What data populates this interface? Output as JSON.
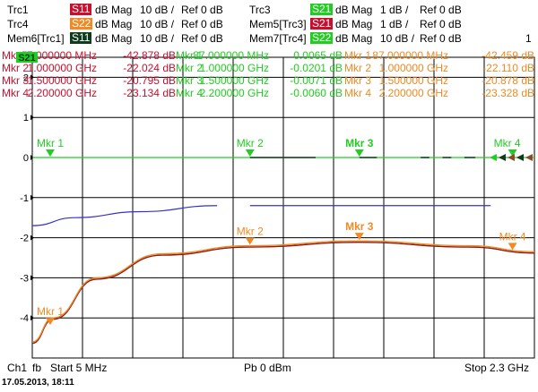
{
  "header": {
    "rows": [
      {
        "trace": "Trc1",
        "param": "S11",
        "param_color": "#c8102e",
        "format": "dB Mag",
        "scale": "10 dB /",
        "ref": "Ref 0 dB"
      },
      {
        "trace": "Trc4",
        "param": "S22",
        "param_color": "#f08a24",
        "format": "dB Mag",
        "scale": "10 dB /",
        "ref": "Ref 0 dB"
      },
      {
        "trace": "Mem6[Trc1]",
        "param": "S11",
        "param_color": "#0f3a1e",
        "format": "dB Mag",
        "scale": "10 dB /",
        "ref": "Ref 0 dB"
      }
    ],
    "rows_right": [
      {
        "trace": "Trc3",
        "param": "S21",
        "param_color": "#22cc22",
        "format": "dB Mag",
        "scale": "1 dB /",
        "ref": "Ref 0 dB"
      },
      {
        "trace": "Mem5[Trc3]",
        "param": "S21",
        "param_color": "#c8102e",
        "format": "dB Mag",
        "scale": "1 dB /",
        "ref": "Ref 0 dB"
      },
      {
        "trace": "Mem7[Trc4]",
        "param": "S22",
        "param_color": "#22cc22",
        "format": "dB Mag",
        "scale": "10 dB /",
        "ref": "Ref 0 dB"
      }
    ],
    "channel_number": "1"
  },
  "marker_tables": {
    "s11": [
      {
        "name": "Mkr 1",
        "freq": "87.000000 MHz",
        "value": "-42.878 dB"
      },
      {
        "name": "Mkr 2",
        "freq": "1.000000 GHz",
        "value": "-22.024 dB"
      },
      {
        "name": "Mkr 3",
        "freq": "1.500000 GHz",
        "value": "-20.795 dB"
      },
      {
        "name": "Mkr 4",
        "freq": "2.200000 GHz",
        "value": "-23.134 dB"
      }
    ],
    "s21": [
      {
        "name": "Mkr 1",
        "freq": "87.000000 MHz",
        "value": "0.0065 dB"
      },
      {
        "name": "Mkr 2",
        "freq": "1.000000 GHz",
        "value": "-0.0201 dB"
      },
      {
        "name": "Mkr 3",
        "freq": "1.500000 GHz",
        "value": "-0.0071 dB"
      },
      {
        "name": "Mkr 4",
        "freq": "2.200000 GHz",
        "value": "-0.0060 dB"
      }
    ],
    "s22": [
      {
        "name": "Mkr 1",
        "freq": "87.000000 MHz",
        "value": "-42.459 dB"
      },
      {
        "name": "Mkr 2",
        "freq": "1.000000 GHz",
        "value": "-22.110 dB"
      },
      {
        "name": "Mkr 3",
        "freq": "1.500000 GHz",
        "value": "-20.878 dB"
      },
      {
        "name": "Mkr 4",
        "freq": "2.200000 GHz",
        "value": "-23.328 dB"
      }
    ]
  },
  "active_marker_badge": "S21",
  "footer": {
    "channel": "Ch1",
    "mode": "fb",
    "start": "Start  5 MHz",
    "power": "Pb  0 dBm",
    "stop": "Stop  2.3 GHz"
  },
  "timestamp": "17.05.2013, 18:11",
  "colors": {
    "s11": "#c8102e",
    "s21": "#22cc22",
    "s22": "#f08a24",
    "mem": "#3333cc",
    "grid": "#000000"
  },
  "chart_data": {
    "type": "line",
    "title": "",
    "xlabel": "",
    "ylabel": "",
    "xlim": [
      0.005,
      2.3
    ],
    "ylim": [
      -5,
      2.5
    ],
    "x_unit": "GHz",
    "yticks": [
      "2",
      "1",
      "0",
      "-1",
      "-2",
      "-3",
      "-4"
    ],
    "ytick_values": [
      2,
      1,
      0,
      -1,
      -2,
      -3,
      -4
    ],
    "grid": true,
    "series": [
      {
        "id": "s21",
        "color": "#22cc22",
        "x": [
          0.005,
          2.3
        ],
        "y": [
          0.0,
          0.0
        ]
      },
      {
        "id": "s11_s22",
        "color": "#f08a24",
        "x": [
          0.005,
          0.1,
          0.3,
          0.6,
          1.0,
          1.5,
          2.0,
          2.3
        ],
        "y": [
          -4.6,
          -4.0,
          -3.0,
          -2.4,
          -2.2,
          -2.08,
          -2.2,
          -2.35
        ]
      },
      {
        "id": "mem_blue",
        "color": "#3333cc",
        "x": [
          0.005,
          0.2,
          0.5,
          0.85,
          1.0,
          2.3
        ],
        "y": [
          -1.7,
          -1.5,
          -1.35,
          -1.2,
          -1.2,
          -1.2
        ]
      }
    ],
    "markers": [
      {
        "label": "Mkr 1",
        "series": "s21",
        "x": 0.087,
        "y": 0.0
      },
      {
        "label": "Mkr 2",
        "series": "s21",
        "x": 1.0,
        "y": 0.0
      },
      {
        "label": "Mkr 3",
        "series": "s21",
        "x": 1.5,
        "y": 0.0
      },
      {
        "label": "Mkr 4",
        "series": "s21",
        "x": 2.2,
        "y": 0.0
      },
      {
        "label": "Mkr 1",
        "series": "s22",
        "x": 0.087,
        "y": -4.2
      },
      {
        "label": "Mkr 2",
        "series": "s22",
        "x": 1.0,
        "y": -2.2
      },
      {
        "label": "Mkr 3",
        "series": "s22",
        "x": 1.5,
        "y": -2.08
      },
      {
        "label": "Mkr 4",
        "series": "s22",
        "x": 2.2,
        "y": -2.33
      }
    ]
  }
}
